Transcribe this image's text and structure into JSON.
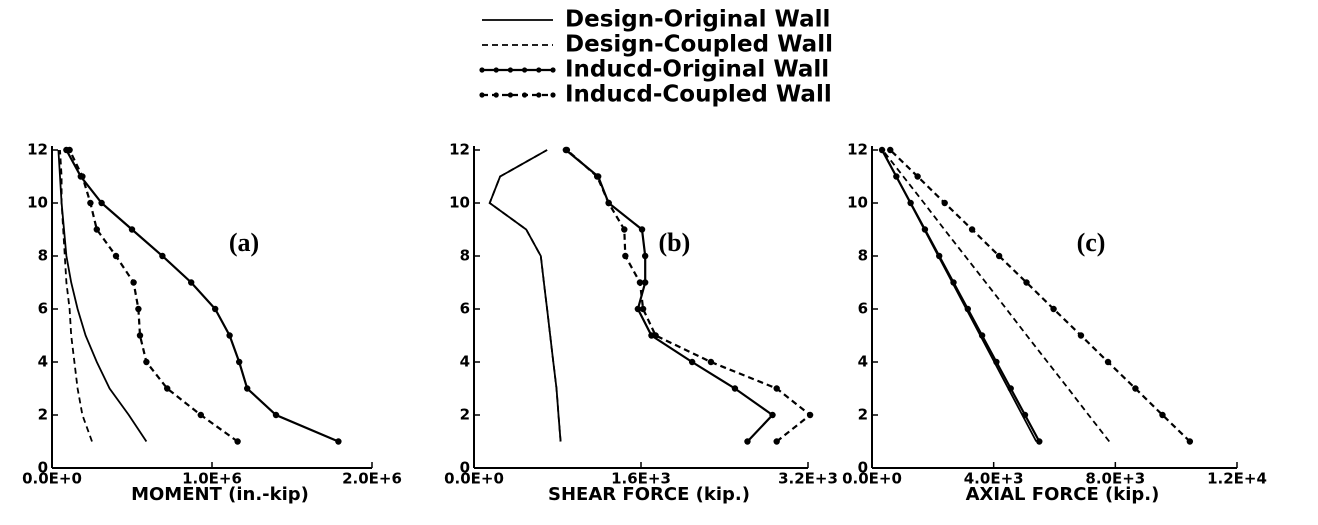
{
  "chart_data": [
    {
      "type": "line",
      "annotation": "(a)",
      "xlabel": "MOMENT (in.-kip)",
      "y": [
        1,
        2,
        3,
        4,
        5,
        6,
        7,
        8,
        9,
        10,
        11,
        12
      ],
      "xlim": [
        0,
        2000000
      ],
      "xticks": [
        {
          "value": 0,
          "label": "0.0E+0"
        },
        {
          "value": 1000000,
          "label": "1.0E+6"
        },
        {
          "value": 2000000,
          "label": "2.0E+6"
        }
      ],
      "ylim": [
        0,
        12
      ],
      "yticks": [
        0,
        2,
        4,
        6,
        8,
        10,
        12
      ],
      "series": [
        {
          "name": "Design-Original Wall",
          "color": "#000000",
          "dashed": false,
          "markers": false,
          "values": [
            590000,
            480000,
            360000,
            280000,
            210000,
            160000,
            120000,
            90000,
            75000,
            60000,
            50000,
            40000
          ]
        },
        {
          "name": "Design-Coupled Wall",
          "color": "#000000",
          "dashed": true,
          "markers": false,
          "values": [
            250000,
            190000,
            160000,
            140000,
            120000,
            110000,
            90000,
            80000,
            70000,
            60000,
            60000,
            50000
          ]
        },
        {
          "name": "Inducd-Original Wall",
          "color": "#000000",
          "dashed": false,
          "markers": true,
          "values": [
            1790000,
            1400000,
            1220000,
            1170000,
            1110000,
            1020000,
            870000,
            690000,
            500000,
            310000,
            180000,
            90000
          ]
        },
        {
          "name": "Inducd-Coupled Wall",
          "color": "#000000",
          "dashed": true,
          "markers": true,
          "values": [
            1160000,
            930000,
            720000,
            590000,
            550000,
            540000,
            510000,
            400000,
            280000,
            240000,
            190000,
            110000
          ]
        }
      ]
    },
    {
      "type": "line",
      "annotation": "(b)",
      "xlabel": "SHEAR FORCE (kip.)",
      "y": [
        1,
        2,
        3,
        4,
        5,
        6,
        7,
        8,
        9,
        10,
        11,
        12
      ],
      "xlim": [
        0,
        3200
      ],
      "xticks": [
        {
          "value": 0,
          "label": "0.0E+0"
        },
        {
          "value": 1600,
          "label": "1.6E+3"
        },
        {
          "value": 3200,
          "label": "3.2E+3"
        }
      ],
      "ylim": [
        0,
        12
      ],
      "yticks": [
        0,
        2,
        4,
        6,
        8,
        10,
        12
      ],
      "series": [
        {
          "color": "#000000",
          "dashed": false,
          "markers": false,
          "values": [
            830,
            810,
            790,
            760,
            730,
            700,
            670,
            640,
            500,
            150,
            250,
            700
          ]
        },
        {
          "color": "#000000",
          "dashed": true,
          "markers": false,
          "values": [
            830,
            810,
            790,
            760,
            730,
            700,
            670,
            640,
            500,
            150,
            250,
            700
          ]
        },
        {
          "color": "#000000",
          "dashed": false,
          "markers": true,
          "values": [
            2620,
            2860,
            2500,
            2090,
            1700,
            1570,
            1640,
            1640,
            1610,
            1290,
            1190,
            880
          ]
        },
        {
          "color": "#000000",
          "dashed": true,
          "markers": true,
          "values": [
            2900,
            3220,
            2900,
            2270,
            1740,
            1620,
            1590,
            1450,
            1440,
            1290,
            1180,
            890
          ]
        }
      ]
    },
    {
      "type": "line",
      "annotation": "(c)",
      "xlabel": "AXIAL FORCE (kip.)",
      "y": [
        1,
        2,
        3,
        4,
        5,
        6,
        7,
        8,
        9,
        10,
        11,
        12
      ],
      "xlim": [
        0,
        12000
      ],
      "xticks": [
        {
          "value": 0,
          "label": "0.0E+0"
        },
        {
          "value": 4000,
          "label": "4.0E+3"
        },
        {
          "value": 8000,
          "label": "8.0E+3"
        },
        {
          "value": 12000,
          "label": "1.2E+4"
        }
      ],
      "ylim": [
        0,
        12
      ],
      "yticks": [
        0,
        2,
        4,
        6,
        8,
        10,
        12
      ],
      "series": [
        {
          "color": "#000000",
          "dashed": false,
          "markers": false,
          "values": [
            5400,
            4940,
            4480,
            4020,
            3560,
            3100,
            2640,
            2180,
            1720,
            1260,
            800,
            340
          ]
        },
        {
          "color": "#000000",
          "dashed": true,
          "markers": false,
          "values": [
            7800,
            7120,
            6450,
            5770,
            5090,
            4420,
            3740,
            3060,
            2380,
            1710,
            1030,
            350
          ]
        },
        {
          "color": "#000000",
          "dashed": false,
          "markers": true,
          "values": [
            5500,
            5030,
            4560,
            4090,
            3620,
            3150,
            2680,
            2210,
            1740,
            1270,
            800,
            330
          ]
        },
        {
          "color": "#000000",
          "dashed": true,
          "markers": true,
          "values": [
            10450,
            9550,
            8660,
            7760,
            6870,
            5970,
            5080,
            4180,
            3290,
            2390,
            1500,
            600
          ]
        }
      ]
    }
  ]
}
